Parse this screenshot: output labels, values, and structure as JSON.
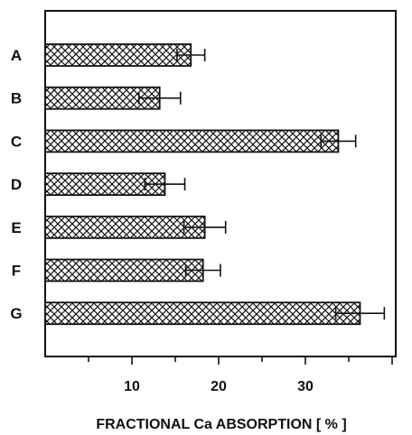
{
  "chart_data": {
    "type": "bar",
    "orientation": "horizontal",
    "categories": [
      "A",
      "B",
      "C",
      "D",
      "E",
      "F",
      "G"
    ],
    "values": [
      16.8,
      13.2,
      33.8,
      13.8,
      18.4,
      18.2,
      36.3
    ],
    "errors": [
      1.6,
      2.4,
      2.0,
      2.3,
      2.4,
      2.0,
      2.8
    ],
    "xticks": [
      10,
      20,
      30
    ],
    "xlim": [
      0,
      40
    ],
    "title": "",
    "xlabel": "FRACTIONAL Ca ABSORPTION [ % ]",
    "ylabel": "",
    "grid": false,
    "legend": "none",
    "bar_fill": "crosshatch",
    "bar_color": "#ffffff",
    "line_color": "#111111"
  }
}
